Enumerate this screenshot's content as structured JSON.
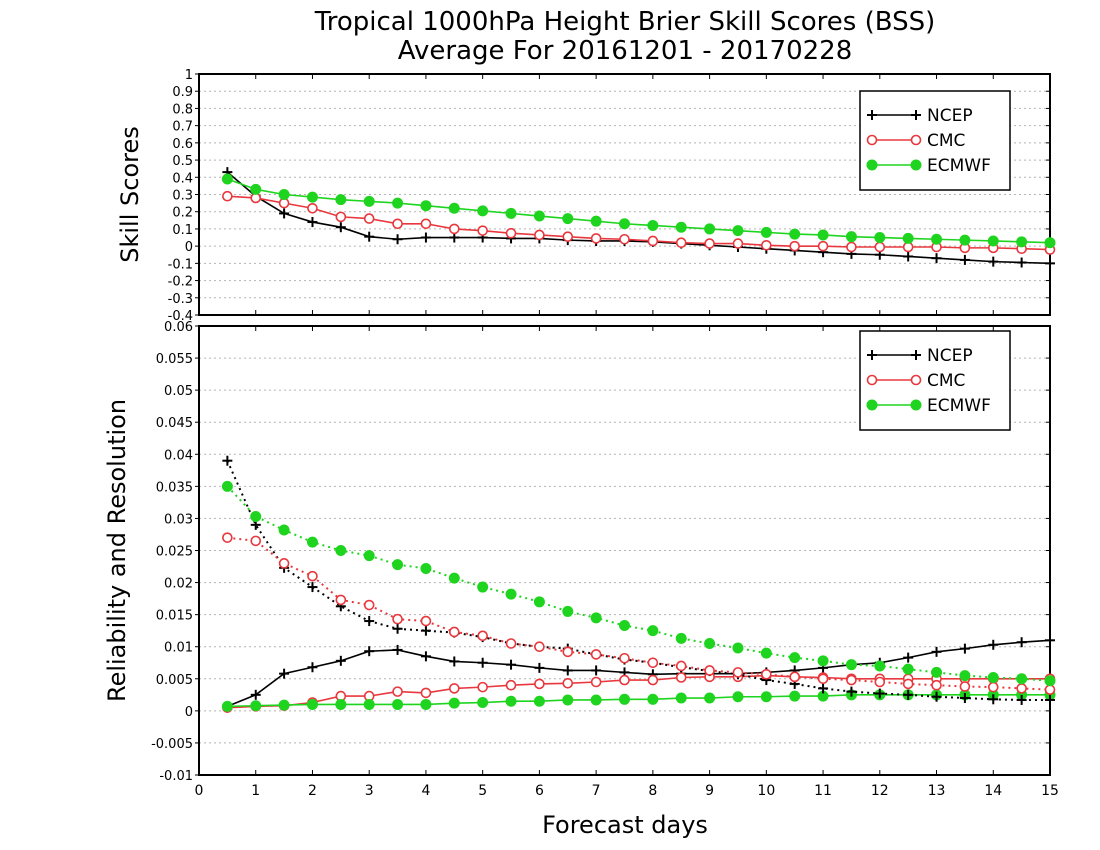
{
  "figure": {
    "title_line1": "Tropical 1000hPa Height Brier Skill Scores (BSS)",
    "title_line2": "Average For 20161201 - 20170228",
    "xlabel": "Forecast days"
  },
  "colors": {
    "NCEP": "#000000",
    "CMC": "#e8383d",
    "ECMWF": "#1fd41f",
    "grid": "#b4b4b4"
  },
  "chart_data": [
    {
      "type": "line",
      "ylabel": "Skill Scores",
      "xlim": [
        0,
        15
      ],
      "ylim": [
        -0.4,
        1
      ],
      "xticks": [
        0,
        1,
        2,
        3,
        4,
        5,
        6,
        7,
        8,
        9,
        10,
        11,
        12,
        13,
        14,
        15
      ],
      "yticks": [
        -0.4,
        -0.3,
        -0.2,
        -0.1,
        0,
        0.1,
        0.2,
        0.3,
        0.4,
        0.5,
        0.6,
        0.7,
        0.8,
        0.9,
        1
      ],
      "ytick_labels": [
        "-0.4",
        "-0.3",
        "-0.2",
        "-0.1",
        "0",
        "0.1",
        "0.2",
        "0.3",
        "0.4",
        "0.5",
        "0.6",
        "0.7",
        "0.8",
        "0.9",
        "1"
      ],
      "grid": true,
      "legend_position": "top-right",
      "x": [
        0.5,
        1,
        1.5,
        2,
        2.5,
        3,
        3.5,
        4,
        4.5,
        5,
        5.5,
        6,
        6.5,
        7,
        7.5,
        8,
        8.5,
        9,
        9.5,
        10,
        10.5,
        11,
        11.5,
        12,
        12.5,
        13,
        13.5,
        14,
        14.5,
        15
      ],
      "series": [
        {
          "name": "NCEP",
          "marker": "plus",
          "linestyle": "solid",
          "values": [
            0.43,
            0.29,
            0.19,
            0.14,
            0.11,
            0.055,
            0.04,
            0.05,
            0.05,
            0.05,
            0.045,
            0.045,
            0.035,
            0.03,
            0.03,
            0.025,
            0.015,
            0.005,
            -0.005,
            -0.015,
            -0.025,
            -0.035,
            -0.045,
            -0.05,
            -0.06,
            -0.07,
            -0.08,
            -0.09,
            -0.095,
            -0.1
          ]
        },
        {
          "name": "CMC",
          "marker": "open-circle",
          "linestyle": "solid",
          "values": [
            0.29,
            0.28,
            0.25,
            0.22,
            0.17,
            0.16,
            0.13,
            0.13,
            0.1,
            0.09,
            0.075,
            0.065,
            0.055,
            0.045,
            0.04,
            0.03,
            0.02,
            0.015,
            0.015,
            0.005,
            0.0,
            0.0,
            -0.005,
            -0.005,
            -0.005,
            -0.005,
            -0.01,
            -0.01,
            -0.015,
            -0.02
          ]
        },
        {
          "name": "ECMWF",
          "marker": "filled-circle",
          "linestyle": "solid",
          "values": [
            0.39,
            0.33,
            0.3,
            0.285,
            0.27,
            0.26,
            0.25,
            0.235,
            0.22,
            0.205,
            0.19,
            0.175,
            0.16,
            0.145,
            0.13,
            0.12,
            0.11,
            0.1,
            0.09,
            0.08,
            0.07,
            0.065,
            0.055,
            0.05,
            0.045,
            0.04,
            0.035,
            0.03,
            0.025,
            0.02
          ]
        }
      ]
    },
    {
      "type": "line",
      "ylabel": "Reliability and Resolution",
      "xlim": [
        0,
        15
      ],
      "ylim": [
        -0.01,
        0.06
      ],
      "xticks": [
        0,
        1,
        2,
        3,
        4,
        5,
        6,
        7,
        8,
        9,
        10,
        11,
        12,
        13,
        14,
        15
      ],
      "yticks": [
        -0.01,
        -0.005,
        0,
        0.005,
        0.01,
        0.015,
        0.02,
        0.025,
        0.03,
        0.035,
        0.04,
        0.045,
        0.05,
        0.055,
        0.06
      ],
      "ytick_labels": [
        "-0.01",
        "-0.005",
        "0",
        "0.005",
        "0.01",
        "0.015",
        "0.02",
        "0.025",
        "0.03",
        "0.035",
        "0.04",
        "0.045",
        "0.05",
        "0.055",
        "0.06"
      ],
      "grid": true,
      "legend_position": "top-right",
      "x": [
        0.5,
        1,
        1.5,
        2,
        2.5,
        3,
        3.5,
        4,
        4.5,
        5,
        5.5,
        6,
        6.5,
        7,
        7.5,
        8,
        8.5,
        9,
        9.5,
        10,
        10.5,
        11,
        11.5,
        12,
        12.5,
        13,
        13.5,
        14,
        14.5,
        15
      ],
      "series": [
        {
          "name": "NCEP",
          "marker": "plus",
          "linestyle": "solid",
          "values": [
            0.0007,
            0.0025,
            0.0058,
            0.0068,
            0.0078,
            0.0093,
            0.0095,
            0.0085,
            0.0077,
            0.0075,
            0.0072,
            0.0067,
            0.0063,
            0.0063,
            0.006,
            0.0057,
            0.0058,
            0.0058,
            0.0058,
            0.006,
            0.0063,
            0.0067,
            0.0072,
            0.0075,
            0.0083,
            0.0092,
            0.0097,
            0.0103,
            0.0107,
            0.011
          ]
        },
        {
          "name": "CMC",
          "marker": "open-circle",
          "linestyle": "solid",
          "values": [
            0.0005,
            0.0007,
            0.0008,
            0.0013,
            0.0023,
            0.0023,
            0.003,
            0.0028,
            0.0035,
            0.0037,
            0.004,
            0.0042,
            0.0043,
            0.0045,
            0.0048,
            0.0048,
            0.0052,
            0.0053,
            0.0053,
            0.0055,
            0.0053,
            0.0052,
            0.005,
            0.005,
            0.005,
            0.005,
            0.005,
            0.005,
            0.005,
            0.005
          ]
        },
        {
          "name": "ECMWF",
          "marker": "filled-circle",
          "linestyle": "solid",
          "values": [
            0.0007,
            0.0008,
            0.0009,
            0.001,
            0.001,
            0.001,
            0.001,
            0.001,
            0.0012,
            0.0013,
            0.0015,
            0.0015,
            0.0017,
            0.0017,
            0.0018,
            0.0018,
            0.002,
            0.002,
            0.0022,
            0.0022,
            0.0023,
            0.0023,
            0.0025,
            0.0025,
            0.0025,
            0.0025,
            0.0025,
            0.0025,
            0.0025,
            0.0025
          ]
        },
        {
          "name": "NCEP",
          "marker": "plus",
          "linestyle": "dotted",
          "legend": false,
          "values": [
            0.039,
            0.029,
            0.0223,
            0.0193,
            0.0163,
            0.014,
            0.0128,
            0.0125,
            0.0122,
            0.0115,
            0.0105,
            0.01,
            0.0097,
            0.0088,
            0.008,
            0.0075,
            0.0068,
            0.0062,
            0.0057,
            0.0048,
            0.0042,
            0.0035,
            0.003,
            0.0027,
            0.0025,
            0.0022,
            0.002,
            0.0018,
            0.0017,
            0.0017
          ]
        },
        {
          "name": "CMC",
          "marker": "open-circle",
          "linestyle": "dotted",
          "legend": false,
          "values": [
            0.027,
            0.0265,
            0.023,
            0.021,
            0.0173,
            0.0165,
            0.0143,
            0.014,
            0.0123,
            0.0117,
            0.0105,
            0.01,
            0.0092,
            0.0088,
            0.0082,
            0.0075,
            0.007,
            0.0063,
            0.006,
            0.0057,
            0.0053,
            0.005,
            0.0048,
            0.0045,
            0.0042,
            0.004,
            0.0038,
            0.0037,
            0.0035,
            0.0033
          ]
        },
        {
          "name": "ECMWF",
          "marker": "filled-circle",
          "linestyle": "dotted",
          "legend": false,
          "values": [
            0.035,
            0.0303,
            0.0282,
            0.0263,
            0.025,
            0.0242,
            0.0228,
            0.0222,
            0.0207,
            0.0193,
            0.0182,
            0.017,
            0.0155,
            0.0145,
            0.0133,
            0.0125,
            0.0113,
            0.0105,
            0.0098,
            0.009,
            0.0083,
            0.0078,
            0.0072,
            0.007,
            0.0065,
            0.006,
            0.0055,
            0.0052,
            0.005,
            0.0047
          ]
        }
      ]
    }
  ]
}
